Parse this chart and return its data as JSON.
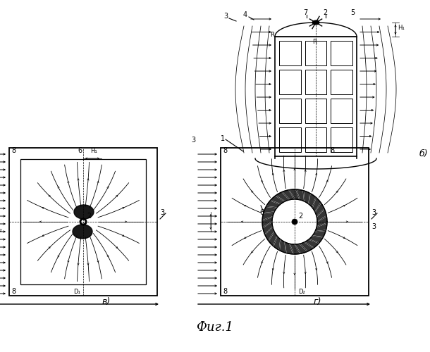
{
  "bg_color": "#ffffff",
  "lc": "#000000",
  "title": "Фиг.1",
  "label_b": "б)",
  "label_v": "в)",
  "label_g": "г)"
}
